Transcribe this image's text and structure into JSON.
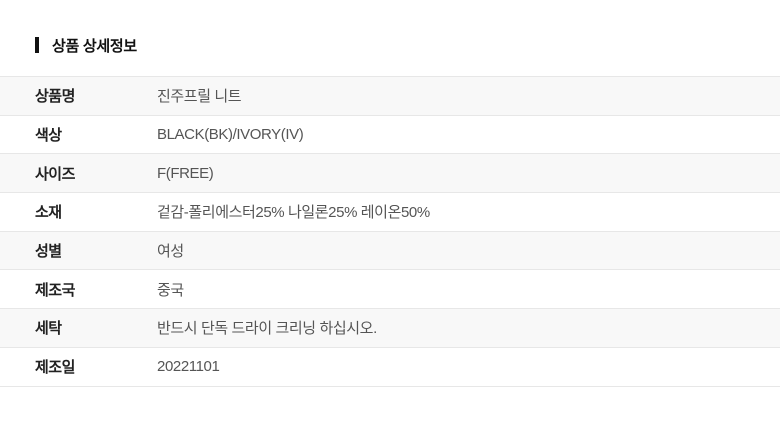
{
  "page": {
    "title": "상품 상세정보"
  },
  "table": {
    "rows": [
      {
        "label": "상품명",
        "value": "진주프릴 니트"
      },
      {
        "label": "색상",
        "value": "BLACK(BK)/IVORY(IV)"
      },
      {
        "label": "사이즈",
        "value": "F(FREE)"
      },
      {
        "label": "소재",
        "value": "겉감-폴리에스터25% 나일론25% 레이온50%"
      },
      {
        "label": "성별",
        "value": "여성"
      },
      {
        "label": "제조국",
        "value": "중국"
      },
      {
        "label": "세탁",
        "value": "반드시 단독 드라이 크리닝 하십시오."
      },
      {
        "label": "제조일",
        "value": "20221101"
      }
    ]
  },
  "colors": {
    "title_text": "#111111",
    "title_bar": "#111111",
    "row_alt_bg": "#f8f8f8",
    "divider": "#e7e7e7",
    "label_text": "#222222",
    "value_text": "#555555"
  }
}
